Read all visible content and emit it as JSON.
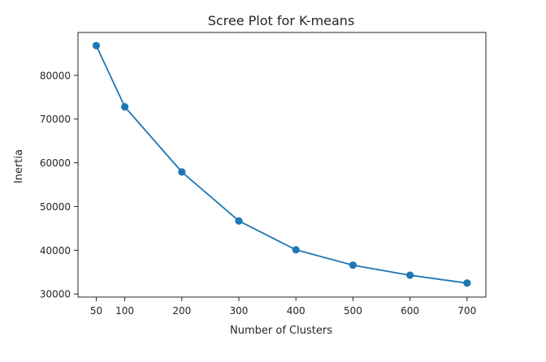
{
  "chart_data": {
    "type": "line",
    "title": "Scree Plot for K-means",
    "xlabel": "Number of Clusters",
    "ylabel": "Inertia",
    "x": [
      50,
      100,
      200,
      300,
      400,
      500,
      600,
      700
    ],
    "xticks": [
      50,
      100,
      200,
      300,
      400,
      500,
      600,
      700
    ],
    "yticks": [
      30000,
      40000,
      50000,
      60000,
      70000,
      80000
    ],
    "xlim": [
      18,
      733
    ],
    "ylim": [
      29300,
      89800
    ],
    "grid": false,
    "series": [
      {
        "values": [
          86800,
          72800,
          57900,
          46700,
          40100,
          36600,
          34300,
          32500
        ],
        "color": "#1f77b4",
        "marker": "circle"
      }
    ]
  }
}
